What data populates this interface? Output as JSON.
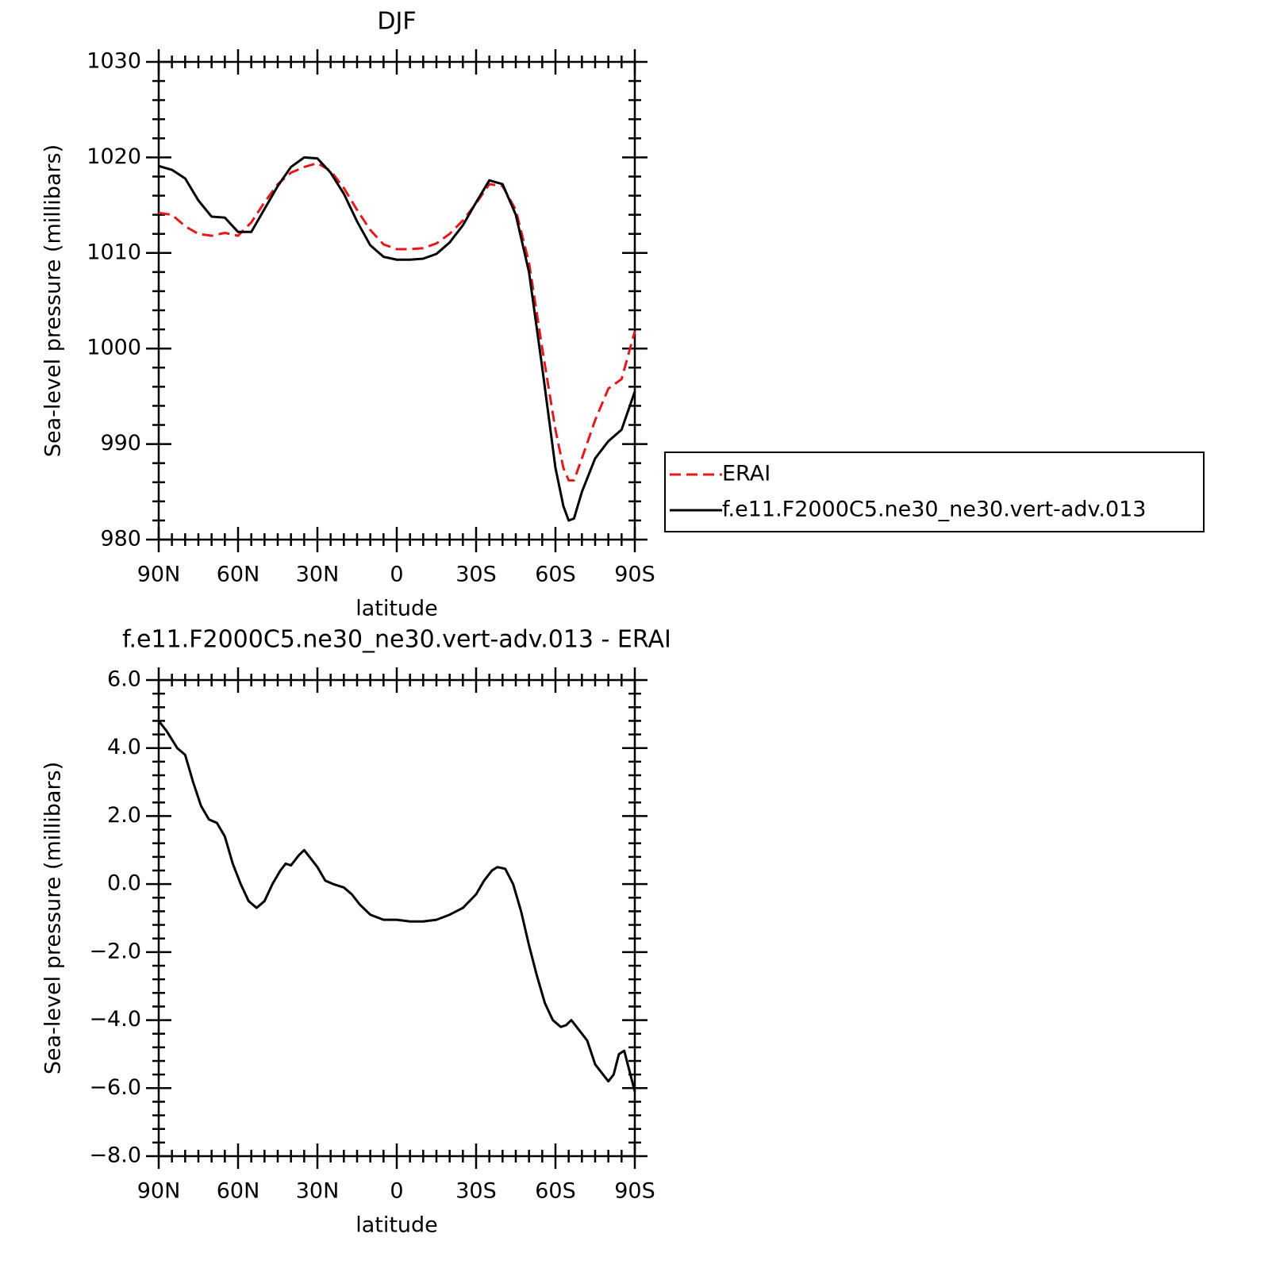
{
  "chart_data": [
    {
      "type": "line",
      "title": "DJF",
      "xlabel": "latitude",
      "ylabel": "Sea-level pressure (millibars)",
      "x": [
        90,
        85,
        80,
        75,
        70,
        65,
        60,
        55,
        50,
        45,
        40,
        35,
        30,
        25,
        20,
        15,
        10,
        5,
        0,
        -5,
        -10,
        -15,
        -20,
        -25,
        -30,
        -35,
        -40,
        -45,
        -50,
        -55,
        -60,
        -63,
        -65,
        -67,
        -70,
        -75,
        -80,
        -85,
        -90
      ],
      "series": [
        {
          "name": "ERAI",
          "color": "#e31a1c",
          "line_style": "dashed",
          "values": [
            1014.2,
            1014.0,
            1012.8,
            1012.0,
            1011.8,
            1012.1,
            1011.8,
            1013.2,
            1015.3,
            1017.2,
            1018.4,
            1019.0,
            1019.4,
            1018.6,
            1016.8,
            1014.5,
            1012.4,
            1010.9,
            1010.4,
            1010.4,
            1010.5,
            1011.0,
            1012.0,
            1013.4,
            1015.2,
            1017.2,
            1017.0,
            1014.5,
            1009.0,
            1000.0,
            991.5,
            987.5,
            986.2,
            986.2,
            988.5,
            992.5,
            995.8,
            996.8,
            1001.8
          ]
        },
        {
          "name": "f.e11.F2000C5.ne30_ne30.vert-adv.013",
          "color": "#000000",
          "line_style": "solid",
          "values": [
            1019.1,
            1018.7,
            1017.8,
            1015.5,
            1013.8,
            1013.7,
            1012.2,
            1012.2,
            1014.6,
            1017.0,
            1019.0,
            1020.0,
            1019.9,
            1018.4,
            1016.2,
            1013.3,
            1010.8,
            1009.6,
            1009.3,
            1009.3,
            1009.4,
            1009.9,
            1011.1,
            1012.9,
            1015.3,
            1017.6,
            1017.2,
            1014.0,
            1008.0,
            998.0,
            987.5,
            983.5,
            982.0,
            982.2,
            985.0,
            988.5,
            990.3,
            991.5,
            995.5
          ]
        }
      ],
      "xlim": [
        90,
        -90
      ],
      "xticks": [
        {
          "value": 90,
          "label": "90N"
        },
        {
          "value": 60,
          "label": "60N"
        },
        {
          "value": 30,
          "label": "30N"
        },
        0,
        {
          "value": -30,
          "label": "30S"
        },
        {
          "value": -60,
          "label": "60S"
        },
        {
          "value": -90,
          "label": "90S"
        }
      ],
      "ylim": [
        980,
        1030
      ],
      "yticks": [
        980,
        990,
        1000,
        1010,
        1020,
        1030
      ],
      "legend": "right"
    },
    {
      "type": "line",
      "title": "f.e11.F2000C5.ne30_ne30.vert-adv.013 - ERAI",
      "xlabel": "latitude",
      "ylabel": "Sea-level pressure (millibars)",
      "x": [
        90,
        87,
        83,
        80,
        77,
        74,
        71,
        68,
        65,
        62,
        59,
        56,
        53,
        50,
        47,
        44,
        42,
        40,
        37,
        35,
        33,
        30,
        27,
        24,
        20,
        17,
        14,
        10,
        5,
        0,
        -5,
        -10,
        -15,
        -20,
        -25,
        -30,
        -33,
        -36,
        -38,
        -41,
        -44,
        -47,
        -50,
        -53,
        -56,
        -59,
        -62,
        -64,
        -66,
        -69,
        -72,
        -75,
        -78,
        -80,
        -82,
        -84,
        -86,
        -88,
        -90
      ],
      "values": [
        4.8,
        4.5,
        4.0,
        3.8,
        3.0,
        2.3,
        1.9,
        1.8,
        1.4,
        0.6,
        0.0,
        -0.5,
        -0.7,
        -0.5,
        0.0,
        0.4,
        0.6,
        0.55,
        0.85,
        1.0,
        0.8,
        0.5,
        0.1,
        0.0,
        -0.1,
        -0.3,
        -0.6,
        -0.9,
        -1.05,
        -1.05,
        -1.1,
        -1.1,
        -1.05,
        -0.9,
        -0.7,
        -0.3,
        0.1,
        0.4,
        0.5,
        0.45,
        0.0,
        -0.8,
        -1.8,
        -2.7,
        -3.5,
        -4.0,
        -4.2,
        -4.15,
        -4.0,
        -4.3,
        -4.6,
        -5.3,
        -5.6,
        -5.8,
        -5.6,
        -5.0,
        -4.9,
        -5.5,
        -6.1
      ],
      "color": "#000000",
      "xlim": [
        90,
        -90
      ],
      "xticks": [
        {
          "value": 90,
          "label": "90N"
        },
        {
          "value": 60,
          "label": "60N"
        },
        {
          "value": 30,
          "label": "30N"
        },
        0,
        {
          "value": -30,
          "label": "30S"
        },
        {
          "value": -60,
          "label": "60S"
        },
        {
          "value": -90,
          "label": "90S"
        }
      ],
      "ylim": [
        -8,
        6
      ],
      "yticks": [
        {
          "value": -8,
          "label": "−8.0"
        },
        {
          "value": -6,
          "label": "−6.0"
        },
        {
          "value": -4,
          "label": "−4.0"
        },
        {
          "value": -2,
          "label": "−2.0"
        },
        {
          "value": 0,
          "label": "0.0"
        },
        {
          "value": 2,
          "label": "2.0"
        },
        {
          "value": 4,
          "label": "4.0"
        },
        {
          "value": 6,
          "label": "6.0"
        }
      ]
    }
  ]
}
